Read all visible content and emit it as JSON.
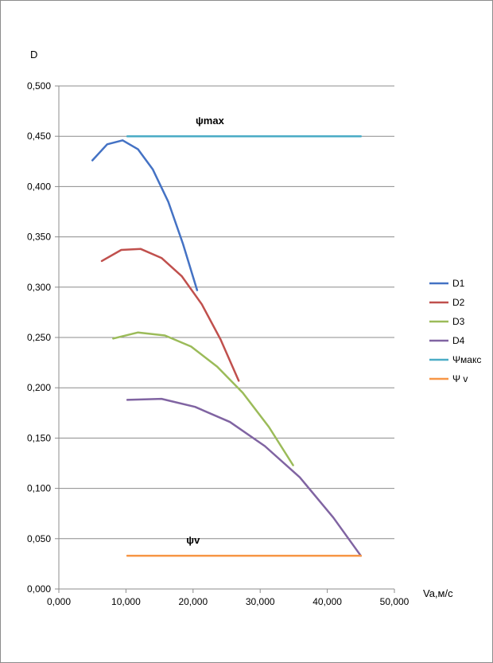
{
  "chart_data": {
    "type": "line",
    "ylabel": "D",
    "xlabel": "Va,м/с",
    "xlim": [
      0,
      50
    ],
    "ylim": [
      0,
      0.5
    ],
    "x_ticks": [
      0,
      10,
      20,
      30,
      40,
      50
    ],
    "y_ticks": [
      0,
      0.05,
      0.1,
      0.15,
      0.2,
      0.25,
      0.3,
      0.35,
      0.4,
      0.45,
      0.5
    ],
    "x_tick_labels": [
      "0,000",
      "10,000",
      "20,000",
      "30,000",
      "40,000",
      "50,000"
    ],
    "y_tick_labels": [
      "0,000",
      "0,050",
      "0,100",
      "0,150",
      "0,200",
      "0,250",
      "0,300",
      "0,350",
      "0,400",
      "0,450",
      "0,500"
    ],
    "grid": "horizontal",
    "legend": "right",
    "annotations": [
      {
        "text": "ψmax",
        "x": 22.5,
        "y": 0.462
      },
      {
        "text": "ψv",
        "x": 20.0,
        "y": 0.045
      }
    ],
    "series": [
      {
        "name": "D1",
        "color": "#4472C4",
        "x": [
          5.0,
          7.2,
          9.5,
          11.8,
          14.0,
          16.3,
          18.5,
          20.6
        ],
        "y": [
          0.426,
          0.442,
          0.446,
          0.437,
          0.417,
          0.385,
          0.343,
          0.297
        ]
      },
      {
        "name": "D2",
        "color": "#C0504D",
        "x": [
          6.4,
          9.3,
          12.2,
          15.3,
          18.3,
          21.3,
          24.1,
          26.8
        ],
        "y": [
          0.326,
          0.337,
          0.338,
          0.329,
          0.311,
          0.283,
          0.248,
          0.207
        ]
      },
      {
        "name": "D3",
        "color": "#9BBB59",
        "x": [
          8.1,
          11.8,
          15.8,
          19.7,
          23.6,
          27.4,
          31.3,
          34.9
        ],
        "y": [
          0.249,
          0.255,
          0.252,
          0.241,
          0.221,
          0.195,
          0.161,
          0.123
        ]
      },
      {
        "name": "D4",
        "color": "#8064A2",
        "x": [
          10.2,
          15.3,
          20.3,
          25.5,
          30.7,
          35.9,
          40.9,
          45.0
        ],
        "y": [
          0.188,
          0.189,
          0.181,
          0.166,
          0.142,
          0.111,
          0.071,
          0.033
        ]
      },
      {
        "name": "Ψмакс",
        "color": "#4BACC6",
        "x": [
          10.2,
          45.0
        ],
        "y": [
          0.45,
          0.45
        ]
      },
      {
        "name": "Ψ v",
        "color": "#F79646",
        "x": [
          10.2,
          45.0
        ],
        "y": [
          0.033,
          0.033
        ]
      }
    ]
  }
}
